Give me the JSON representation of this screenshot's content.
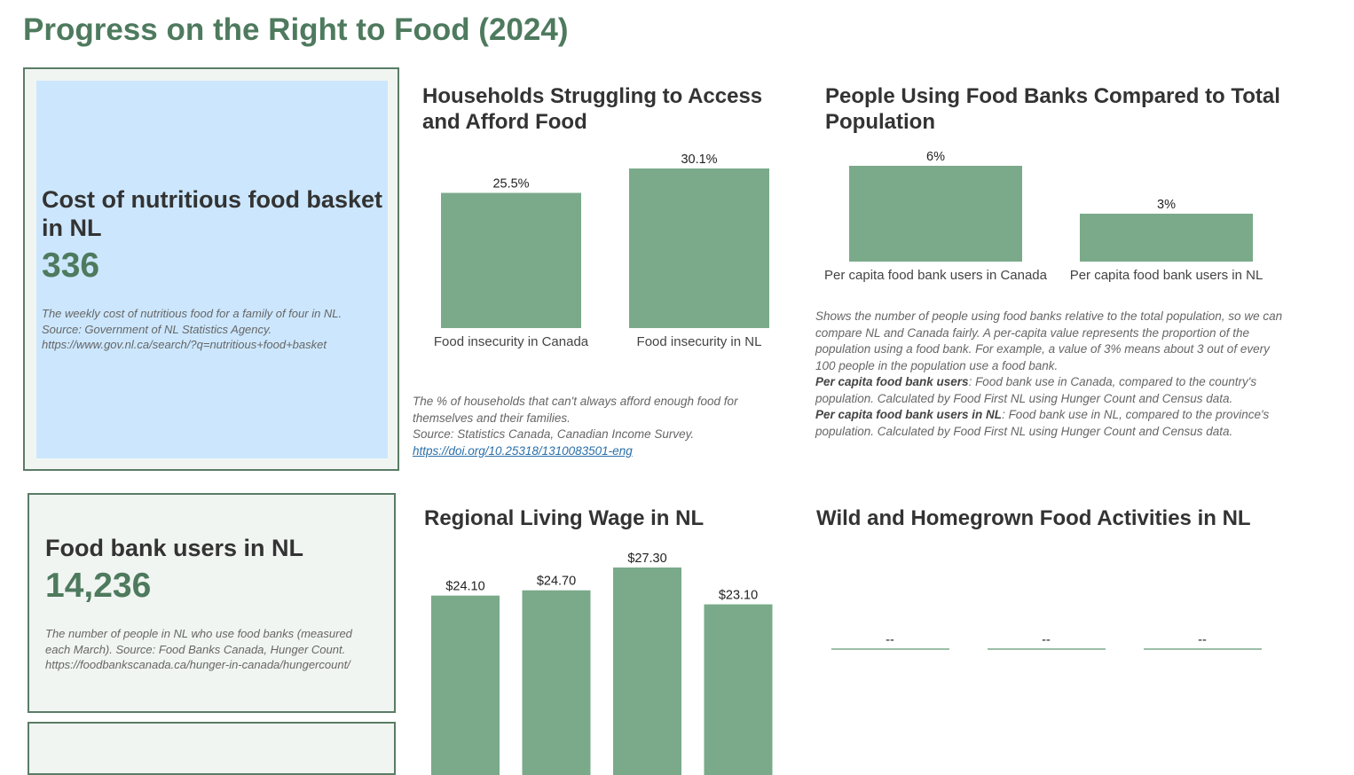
{
  "page_title": "Progress on the Right to Food (2024)",
  "cards": {
    "food_basket": {
      "title": "Cost of nutritious food basket in NL",
      "value": "336",
      "desc_lines": [
        "The weekly cost of nutritious food for a family of four in NL.",
        "Source: Government of NL Statistics Agency.",
        "https://www.gov.nl.ca/search/?q=nutritious+food+basket"
      ]
    },
    "food_bank_users": {
      "title": "Food bank users in NL",
      "value": "14,236",
      "desc_lines": [
        "The number of people in NL who use food banks (measured",
        "each March). Source: Food Banks Canada, Hunger Count.",
        "https://foodbankscanada.ca/hunger-in-canada/hungercount/"
      ]
    }
  },
  "charts": {
    "households": {
      "title": "Households Struggling to Access and Afford Food",
      "note_lines": [
        "The % of households that can't always afford enough food for",
        "themselves and their families.",
        "Source: Statistics Canada, Canadian Income Survey."
      ],
      "link": "https://doi.org/10.25318/1310083501-eng"
    },
    "food_banks_population": {
      "title": "People Using Food Banks Compared to Total Population",
      "note_intro": "Shows the number of people using food banks relative to the total population, so we can compare NL and Canada fairly. A per-capita value represents the proportion of the population using a food bank. For example, a value of 3% means about 3 out of every 100 people in the population use a food bank.",
      "def1_term": "Per capita food bank users",
      "def1_text": ": Food bank use in Canada, compared to the country's population. Calculated by Food First NL using Hunger Count and Census data.",
      "def2_term": "Per capita food bank users in NL",
      "def2_text": ": Food bank use in NL, compared to the province's population. Calculated by Food First NL using Hunger Count and Census data."
    },
    "living_wage": {
      "title": "Regional Living Wage in NL"
    },
    "wild_food": {
      "title": "Wild and Homegrown Food Activities in NL"
    }
  },
  "chart_data": [
    {
      "type": "bar",
      "title": "Households Struggling to Access and Afford Food",
      "categories": [
        "Food insecurity in Canada",
        "Food insecurity in NL"
      ],
      "values": [
        25.5,
        30.1
      ],
      "value_labels": [
        "25.5%",
        "30.1%"
      ],
      "ylim": [
        0,
        30.1
      ],
      "grid": false
    },
    {
      "type": "bar",
      "title": "People Using Food Banks Compared to Total Population",
      "categories": [
        "Per capita food bank users in Canada",
        "Per capita food bank users in NL"
      ],
      "values": [
        6,
        3
      ],
      "value_labels": [
        "6%",
        "3%"
      ],
      "ylim": [
        0,
        6
      ],
      "grid": false
    },
    {
      "type": "bar",
      "title": "Regional Living Wage in NL",
      "categories": [
        "",
        "",
        "",
        ""
      ],
      "values": [
        24.1,
        24.7,
        27.3,
        23.1
      ],
      "value_labels": [
        "$24.10",
        "$24.70",
        "$27.30",
        "$23.10"
      ],
      "grid": false
    },
    {
      "type": "bar",
      "title": "Wild and Homegrown Food Activities in NL",
      "categories": [
        "",
        "",
        ""
      ],
      "values": [
        0,
        0,
        0
      ],
      "value_labels": [
        "--",
        "--",
        "--"
      ],
      "grid": false
    }
  ],
  "colors": {
    "accent": "#4e7a5e",
    "bar": "#7aaa8a",
    "card_bg": "#f1f5f2",
    "card_border": "#5a7c66",
    "highlight_bg": "#cce7fd",
    "link": "#2a6fa8"
  }
}
